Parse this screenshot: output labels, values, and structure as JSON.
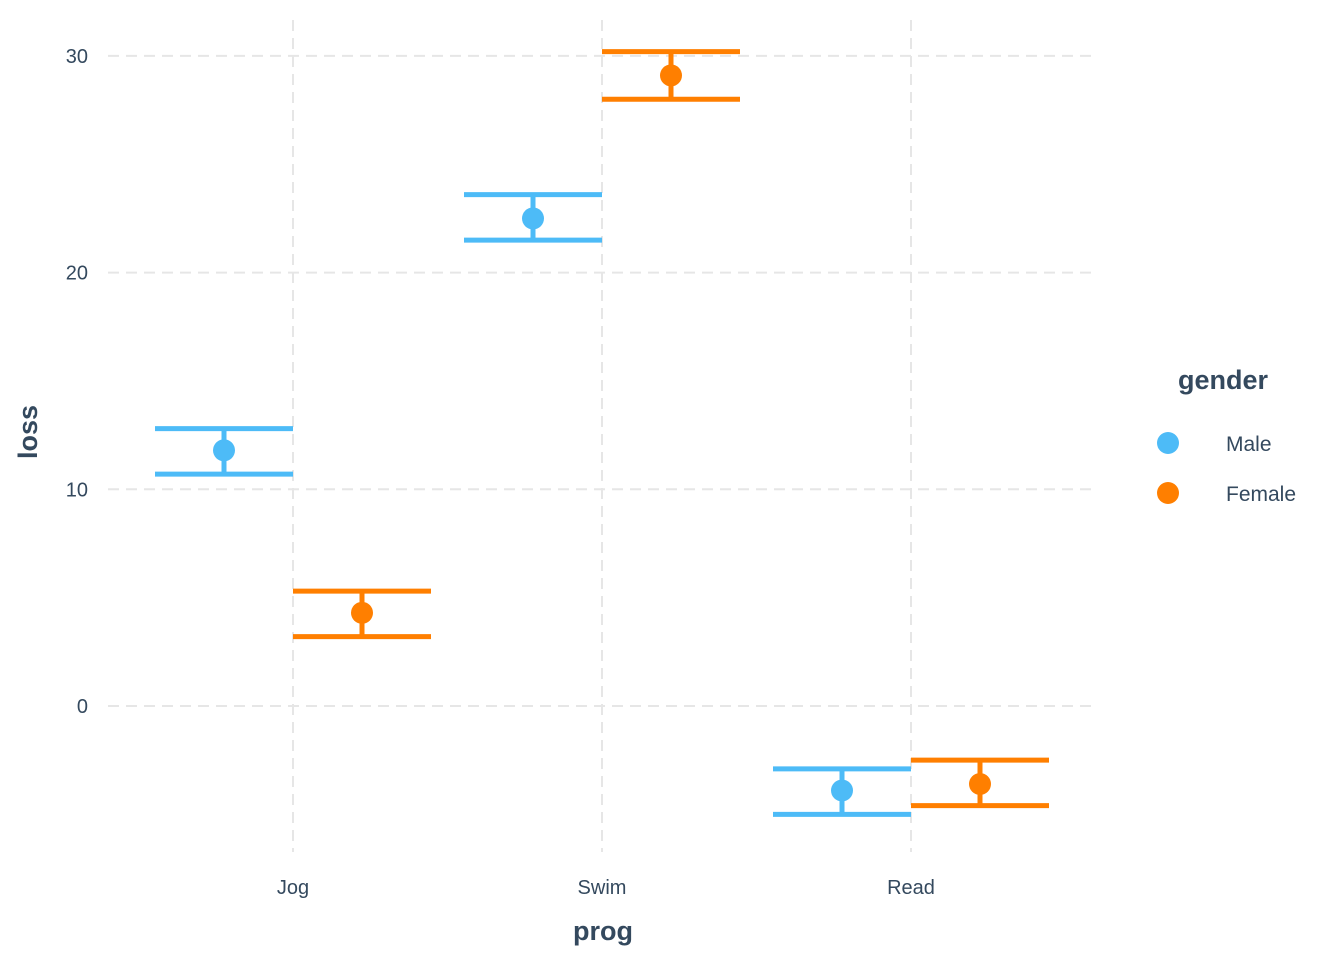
{
  "chart_data": {
    "type": "errorbar",
    "title": "",
    "xlabel": "prog",
    "ylabel": "loss",
    "categories": [
      "Jog",
      "Swim",
      "Read"
    ],
    "ylim": [
      -6.5,
      31
    ],
    "yticks": [
      "0",
      "10",
      "20",
      "30"
    ],
    "grid": true,
    "legend": {
      "title": "gender",
      "position": "right"
    },
    "series": [
      {
        "name": "Male",
        "color": "#4DBBF7",
        "points": [
          {
            "x": "Jog",
            "y": 11.8,
            "ymin": 10.7,
            "ymax": 12.8
          },
          {
            "x": "Swim",
            "y": 22.5,
            "ymin": 21.5,
            "ymax": 23.6
          },
          {
            "x": "Read",
            "y": -3.9,
            "ymin": -5.0,
            "ymax": -2.9
          }
        ]
      },
      {
        "name": "Female",
        "color": "#FF7F00",
        "points": [
          {
            "x": "Jog",
            "y": 4.3,
            "ymin": 3.2,
            "ymax": 5.3
          },
          {
            "x": "Swim",
            "y": 29.1,
            "ymin": 28.0,
            "ymax": 30.2
          },
          {
            "x": "Read",
            "y": -3.6,
            "ymin": -4.6,
            "ymax": -2.5
          }
        ]
      }
    ]
  }
}
